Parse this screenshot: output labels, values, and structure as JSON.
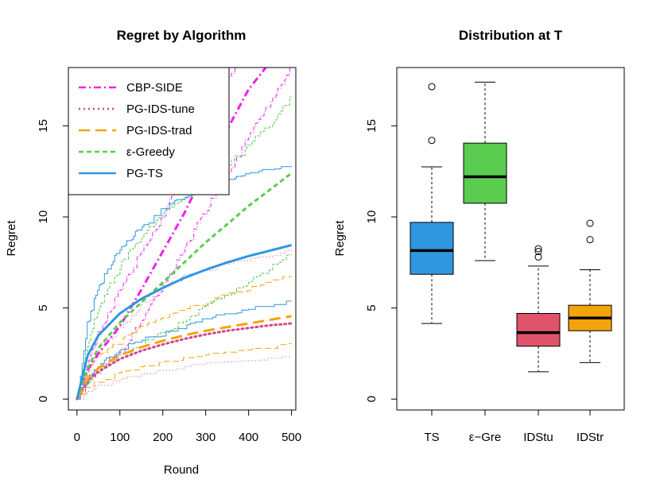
{
  "chart_data": [
    {
      "type": "line",
      "title": "Regret by Algorithm",
      "xlabel": "Round",
      "ylabel": "Regret",
      "xlim": [
        -20,
        510
      ],
      "ylim": [
        -0.6,
        18.2
      ],
      "xticks": [
        "0",
        "100",
        "200",
        "300",
        "400",
        "500"
      ],
      "yticks": [
        "0",
        "5",
        "10",
        "15"
      ],
      "legend_position": "top-left",
      "series": [
        {
          "name": "CBP-SIDE",
          "color": "#EE22EE",
          "dash": "9,4,2,4",
          "mean": [
            [
              0,
              0
            ],
            [
              25,
              1.6
            ],
            [
              50,
              2.5
            ],
            [
              100,
              4.0
            ],
            [
              150,
              6.0
            ],
            [
              200,
              8.1
            ],
            [
              250,
              10.2
            ],
            [
              300,
              12.6
            ],
            [
              350,
              14.8
            ],
            [
              400,
              17.0
            ],
            [
              440,
              18.2
            ]
          ],
          "bands": [
            [
              [
                0,
                0
              ],
              [
                25,
                2.0
              ],
              [
                50,
                3.6
              ],
              [
                100,
                6.0
              ],
              [
                150,
                8.0
              ],
              [
                200,
                10.0
              ],
              [
                250,
                12.3
              ],
              [
                300,
                15.0
              ],
              [
                350,
                17.5
              ],
              [
                380,
                18.2
              ]
            ],
            [
              [
                0,
                0
              ],
              [
                25,
                0.9
              ],
              [
                50,
                1.6
              ],
              [
                100,
                2.6
              ],
              [
                150,
                4.2
              ],
              [
                200,
                6.2
              ],
              [
                250,
                8.1
              ],
              [
                300,
                10.4
              ],
              [
                350,
                12.2
              ],
              [
                400,
                14.4
              ],
              [
                450,
                16.2
              ],
              [
                500,
                18.2
              ]
            ]
          ]
        },
        {
          "name": "PG-IDS-tune",
          "color": "#D4468A",
          "dash": "2,4",
          "mean": [
            [
              0,
              0
            ],
            [
              25,
              1.0
            ],
            [
              50,
              1.5
            ],
            [
              100,
              2.2
            ],
            [
              150,
              2.65
            ],
            [
              200,
              3.0
            ],
            [
              250,
              3.3
            ],
            [
              300,
              3.55
            ],
            [
              350,
              3.75
            ],
            [
              400,
              3.9
            ],
            [
              450,
              4.05
            ],
            [
              500,
              4.15
            ]
          ],
          "bands": [
            [
              [
                0,
                0
              ],
              [
                25,
                1.5
              ],
              [
                50,
                2.7
              ],
              [
                100,
                3.8
              ],
              [
                150,
                5.1
              ],
              [
                200,
                6.0
              ],
              [
                250,
                6.6
              ],
              [
                300,
                7.0
              ],
              [
                350,
                7.3
              ],
              [
                400,
                7.5
              ],
              [
                450,
                7.7
              ],
              [
                500,
                8.0
              ]
            ],
            [
              [
                0,
                0
              ],
              [
                25,
                0.3
              ],
              [
                50,
                0.6
              ],
              [
                100,
                0.9
              ],
              [
                150,
                1.2
              ],
              [
                200,
                1.4
              ],
              [
                250,
                1.6
              ],
              [
                300,
                1.75
              ],
              [
                350,
                1.85
              ],
              [
                400,
                1.95
              ],
              [
                450,
                2.05
              ],
              [
                500,
                2.15
              ]
            ]
          ]
        },
        {
          "name": "PG-IDS-trad",
          "color": "#F5A30A",
          "dash": "14,7",
          "mean": [
            [
              0,
              0
            ],
            [
              25,
              1.1
            ],
            [
              50,
              1.7
            ],
            [
              100,
              2.4
            ],
            [
              150,
              2.85
            ],
            [
              200,
              3.2
            ],
            [
              250,
              3.5
            ],
            [
              300,
              3.75
            ],
            [
              350,
              3.95
            ],
            [
              400,
              4.15
            ],
            [
              450,
              4.35
            ],
            [
              500,
              4.55
            ]
          ],
          "bands": [
            [
              [
                0,
                0
              ],
              [
                25,
                1.7
              ],
              [
                50,
                2.3
              ],
              [
                100,
                3.1
              ],
              [
                150,
                3.8
              ],
              [
                200,
                4.3
              ],
              [
                250,
                4.8
              ],
              [
                300,
                5.2
              ],
              [
                350,
                5.6
              ],
              [
                400,
                5.9
              ],
              [
                450,
                6.3
              ],
              [
                500,
                6.7
              ]
            ],
            [
              [
                0,
                0
              ],
              [
                25,
                0.5
              ],
              [
                50,
                0.85
              ],
              [
                100,
                1.3
              ],
              [
                150,
                1.6
              ],
              [
                200,
                1.85
              ],
              [
                250,
                2.05
              ],
              [
                300,
                2.25
              ],
              [
                350,
                2.4
              ],
              [
                400,
                2.55
              ],
              [
                450,
                2.7
              ],
              [
                500,
                2.85
              ]
            ]
          ]
        },
        {
          "name": "ε-Greedy",
          "color": "#5ACD50",
          "dash": "6,4",
          "mean": [
            [
              0,
              0
            ],
            [
              25,
              1.7
            ],
            [
              50,
              2.8
            ],
            [
              100,
              4.2
            ],
            [
              150,
              5.3
            ],
            [
              200,
              6.4
            ],
            [
              250,
              7.5
            ],
            [
              300,
              8.6
            ],
            [
              350,
              9.6
            ],
            [
              400,
              10.6
            ],
            [
              450,
              11.5
            ],
            [
              500,
              12.4
            ]
          ],
          "bands": [
            [
              [
                0,
                0
              ],
              [
                25,
                3.0
              ],
              [
                50,
                5.0
              ],
              [
                100,
                7.2
              ],
              [
                150,
                8.9
              ],
              [
                200,
                10.1
              ],
              [
                250,
                10.9
              ],
              [
                300,
                11.8
              ],
              [
                350,
                12.8
              ],
              [
                400,
                13.9
              ],
              [
                450,
                15.0
              ],
              [
                500,
                16.5
              ]
            ],
            [
              [
                0,
                0
              ],
              [
                25,
                0.9
              ],
              [
                50,
                1.5
              ],
              [
                100,
                2.3
              ],
              [
                150,
                2.9
              ],
              [
                200,
                3.5
              ],
              [
                250,
                4.2
              ],
              [
                300,
                5.0
              ],
              [
                350,
                5.6
              ],
              [
                400,
                6.3
              ],
              [
                450,
                7.1
              ],
              [
                500,
                7.9
              ]
            ]
          ]
        },
        {
          "name": "PG-TS",
          "color": "#2F97E0",
          "dash": "",
          "mean": [
            [
              0,
              0
            ],
            [
              25,
              2.4
            ],
            [
              50,
              3.5
            ],
            [
              100,
              4.7
            ],
            [
              150,
              5.5
            ],
            [
              200,
              6.1
            ],
            [
              250,
              6.65
            ],
            [
              300,
              7.1
            ],
            [
              350,
              7.5
            ],
            [
              400,
              7.85
            ],
            [
              450,
              8.15
            ],
            [
              500,
              8.45
            ]
          ],
          "bands": [
            [
              [
                0,
                0
              ],
              [
                25,
                4.2
              ],
              [
                50,
                6.2
              ],
              [
                100,
                8.1
              ],
              [
                150,
                9.3
              ],
              [
                200,
                10.3
              ],
              [
                250,
                11.0
              ],
              [
                300,
                11.5
              ],
              [
                350,
                11.9
              ],
              [
                400,
                12.2
              ],
              [
                450,
                12.45
              ],
              [
                500,
                12.6
              ]
            ],
            [
              [
                0,
                0
              ],
              [
                25,
                1.1
              ],
              [
                50,
                1.8
              ],
              [
                100,
                2.6
              ],
              [
                150,
                3.1
              ],
              [
                200,
                3.5
              ],
              [
                250,
                3.9
              ],
              [
                300,
                4.25
              ],
              [
                350,
                4.55
              ],
              [
                400,
                4.8
              ],
              [
                450,
                5.0
              ],
              [
                500,
                5.2
              ]
            ]
          ]
        }
      ]
    },
    {
      "type": "box",
      "title": "Distribution at T",
      "xlabel": "",
      "ylabel": "Regret",
      "ylim": [
        -0.6,
        18.2
      ],
      "yticks": [
        "0",
        "5",
        "10",
        "15"
      ],
      "categories": [
        "TS",
        "ε−Gre",
        "IDStu",
        "IDStr"
      ],
      "boxes": [
        {
          "label": "TS",
          "color": "#2F97E0",
          "whisker_low": 4.15,
          "q1": 6.85,
          "median": 8.15,
          "q3": 9.7,
          "whisker_high": 12.75,
          "outliers": [
            14.2,
            17.15
          ]
        },
        {
          "label": "ε−Gre",
          "color": "#5ACD50",
          "whisker_low": 7.6,
          "q1": 10.75,
          "median": 12.2,
          "q3": 14.05,
          "whisker_high": 17.4,
          "outliers": []
        },
        {
          "label": "IDStu",
          "color": "#DF536B",
          "whisker_low": 1.5,
          "q1": 2.9,
          "median": 3.65,
          "q3": 4.7,
          "whisker_high": 7.3,
          "outliers": [
            7.8,
            8.1,
            8.25
          ]
        },
        {
          "label": "IDStr",
          "color": "#F5A30A",
          "whisker_low": 2.0,
          "q1": 3.75,
          "median": 4.45,
          "q3": 5.15,
          "whisker_high": 7.1,
          "outliers": [
            8.75,
            9.65
          ]
        }
      ]
    }
  ]
}
